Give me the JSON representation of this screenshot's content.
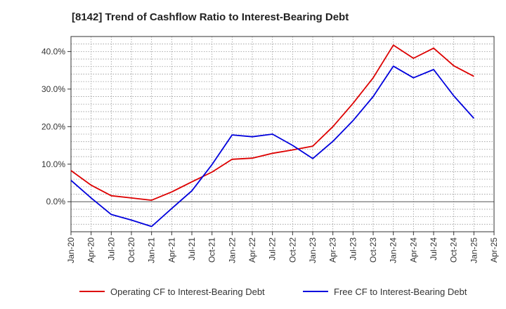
{
  "chart_data": {
    "type": "line",
    "title": "[8142]  Trend of Cashflow Ratio to Interest-Bearing Debt",
    "xlabel": "",
    "ylabel": "",
    "x": [
      "Jan-20",
      "Apr-20",
      "Jul-20",
      "Oct-20",
      "Jan-21",
      "Apr-21",
      "Jul-21",
      "Oct-21",
      "Jan-22",
      "Apr-22",
      "Jul-22",
      "Oct-22",
      "Jan-23",
      "Apr-23",
      "Jul-23",
      "Oct-23",
      "Jan-24",
      "Apr-24",
      "Jul-24",
      "Oct-24",
      "Jan-25"
    ],
    "x_ticks": [
      "Jan-20",
      "Apr-20",
      "Jul-20",
      "Oct-20",
      "Jan-21",
      "Apr-21",
      "Jul-21",
      "Oct-21",
      "Jan-22",
      "Apr-22",
      "Jul-22",
      "Oct-22",
      "Jan-23",
      "Apr-23",
      "Jul-23",
      "Oct-23",
      "Jan-24",
      "Apr-24",
      "Jul-24",
      "Oct-24",
      "Jan-25",
      "Apr-25"
    ],
    "y_ticks": [
      {
        "value": 0,
        "label": "0.0%"
      },
      {
        "value": 10,
        "label": "10.0%"
      },
      {
        "value": 20,
        "label": "20.0%"
      },
      {
        "value": 30,
        "label": "30.0%"
      },
      {
        "value": 40,
        "label": "40.0%"
      }
    ],
    "ylim": [
      -8,
      44
    ],
    "grid": true,
    "legend_position": "bottom",
    "series": [
      {
        "name": "Operating CF to Interest-Bearing Debt",
        "color": "#dd0000",
        "values": [
          8.3,
          4.4,
          1.6,
          1.0,
          0.4,
          2.6,
          5.3,
          7.9,
          11.3,
          11.6,
          12.9,
          13.8,
          14.8,
          20.0,
          26.2,
          33.0,
          41.7,
          38.2,
          40.9,
          36.2,
          33.4
        ]
      },
      {
        "name": "Free CF to Interest-Bearing Debt",
        "color": "#0000dd",
        "values": [
          5.7,
          1.0,
          -3.4,
          -4.9,
          -6.6,
          -1.8,
          2.9,
          9.9,
          17.8,
          17.3,
          18.0,
          15.0,
          11.5,
          16.1,
          21.6,
          28.0,
          36.1,
          33.0,
          35.2,
          28.2,
          22.2
        ]
      }
    ]
  }
}
